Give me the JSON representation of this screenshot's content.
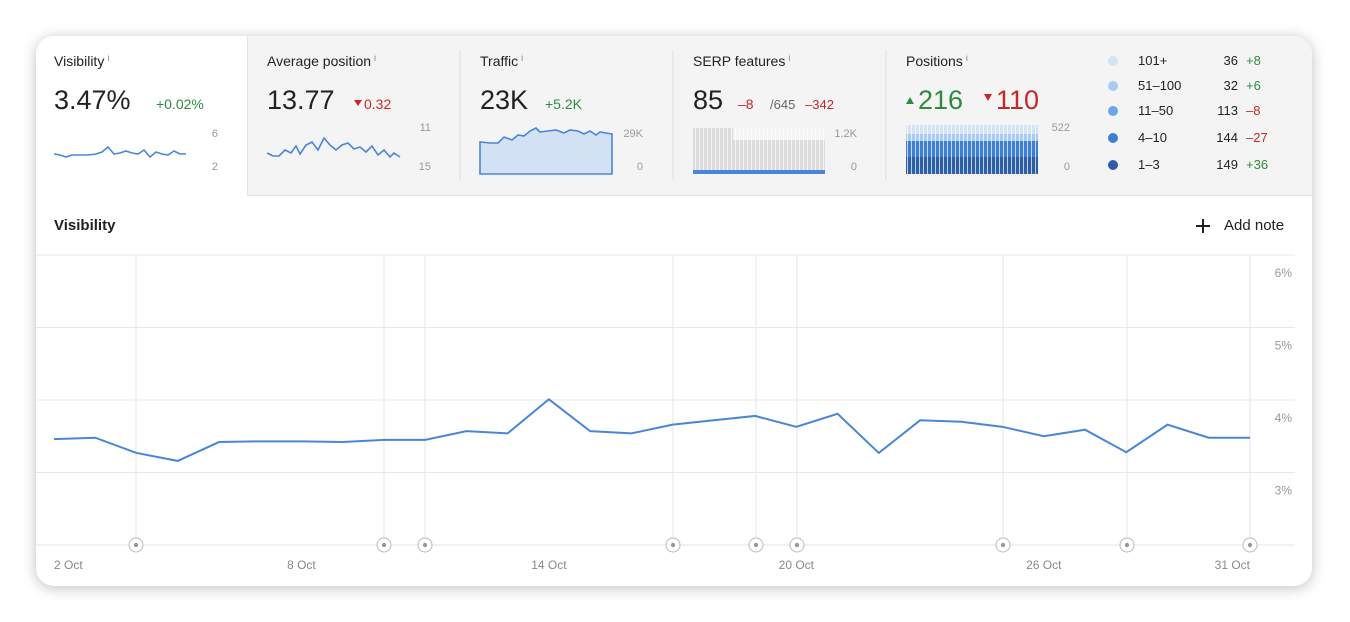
{
  "info_mark": "i",
  "metrics": [
    {
      "label": "Visibility",
      "value": "3.47%",
      "change": "+0.02%",
      "axis_max": "6",
      "axis_min": "2"
    },
    {
      "label": "Average position",
      "value": "13.77",
      "change": "0.32",
      "axis_max": "11",
      "axis_min": "15"
    },
    {
      "label": "Traffic",
      "value": "23K",
      "change": "+5.2K",
      "axis_max": "29K",
      "axis_min": "0"
    },
    {
      "label": "SERP features",
      "value": "85",
      "change": "–8",
      "total": "/645",
      "total_change": "–342",
      "axis_max": "1.2K",
      "axis_min": "0"
    },
    {
      "label": "Positions",
      "up": "216",
      "down": "110",
      "axis_max": "522",
      "axis_min": "0"
    }
  ],
  "positions_legend": [
    {
      "range": "101+",
      "count": "36",
      "change": "+8",
      "color": "#d3e4f7"
    },
    {
      "range": "51–100",
      "count": "32",
      "change": "+6",
      "color": "#a8cbf0"
    },
    {
      "range": "11–50",
      "count": "113",
      "change": "–8",
      "color": "#6da6e6"
    },
    {
      "range": "4–10",
      "count": "144",
      "change": "–27",
      "color": "#3f7fd3"
    },
    {
      "range": "1–3",
      "count": "149",
      "change": "+36",
      "color": "#2b5ea5"
    }
  ],
  "add_note": "Add note",
  "chart_data": {
    "type": "line",
    "title": "Visibility",
    "color": "#4a86d8",
    "categories": [
      "2 Oct",
      null,
      null,
      null,
      null,
      null,
      "8 Oct",
      null,
      null,
      null,
      null,
      null,
      "14 Oct",
      null,
      null,
      null,
      null,
      null,
      "20 Oct",
      null,
      null,
      null,
      null,
      null,
      "26 Oct",
      null,
      null,
      null,
      null,
      "31 Oct"
    ],
    "values": [
      3.46,
      3.48,
      3.27,
      3.16,
      3.42,
      3.43,
      3.43,
      3.42,
      3.45,
      3.45,
      3.57,
      3.54,
      4.01,
      3.57,
      3.54,
      3.66,
      3.72,
      3.78,
      3.63,
      3.81,
      3.27,
      3.72,
      3.7,
      3.63,
      3.5,
      3.59,
      3.28,
      3.66,
      3.48,
      3.48
    ],
    "ylim": [
      2,
      6
    ],
    "yticks": [
      {
        "value": 3,
        "label": "3%"
      },
      {
        "value": 4,
        "label": "4%"
      },
      {
        "value": 5,
        "label": "5%"
      },
      {
        "value": 6,
        "label": "6%"
      }
    ],
    "grid": true
  }
}
